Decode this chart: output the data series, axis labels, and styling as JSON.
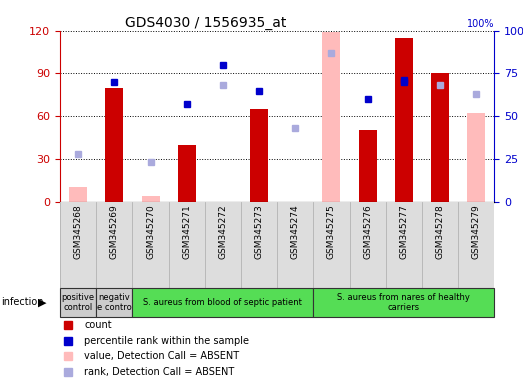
{
  "title": "GDS4030 / 1556935_at",
  "samples": [
    "GSM345268",
    "GSM345269",
    "GSM345270",
    "GSM345271",
    "GSM345272",
    "GSM345273",
    "GSM345274",
    "GSM345275",
    "GSM345276",
    "GSM345277",
    "GSM345278",
    "GSM345279"
  ],
  "count_present": [
    null,
    80,
    null,
    40,
    null,
    65,
    null,
    null,
    50,
    115,
    90,
    null
  ],
  "count_absent": [
    10,
    null,
    4,
    null,
    null,
    null,
    null,
    119,
    null,
    null,
    null,
    62
  ],
  "rank_present": [
    null,
    70,
    null,
    57,
    80,
    65,
    null,
    null,
    60,
    70,
    null,
    null
  ],
  "rank_absent": [
    28,
    null,
    23,
    null,
    68,
    null,
    43,
    87,
    null,
    null,
    68,
    63
  ],
  "rank_present2": [
    null,
    null,
    null,
    null,
    null,
    null,
    null,
    null,
    null,
    71,
    null,
    null
  ],
  "infection_groups": [
    {
      "label": "positive\ncontrol",
      "start": 0,
      "end": 1,
      "color": "#cccccc"
    },
    {
      "label": "negativ\ne contro",
      "start": 1,
      "end": 2,
      "color": "#cccccc"
    },
    {
      "label": "S. aureus from blood of septic patient",
      "start": 2,
      "end": 7,
      "color": "#55dd55"
    },
    {
      "label": "S. aureus from nares of healthy\ncarriers",
      "start": 7,
      "end": 12,
      "color": "#55dd55"
    }
  ],
  "ylim_left": [
    0,
    120
  ],
  "ylim_right": [
    0,
    100
  ],
  "yticks_left": [
    0,
    30,
    60,
    90,
    120
  ],
  "yticks_right": [
    0,
    25,
    50,
    75,
    100
  ],
  "left_color": "#cc0000",
  "right_color": "#0000cc",
  "absent_bar_color": "#ffbbbb",
  "absent_rank_color": "#aaaadd",
  "bar_width": 0.5
}
